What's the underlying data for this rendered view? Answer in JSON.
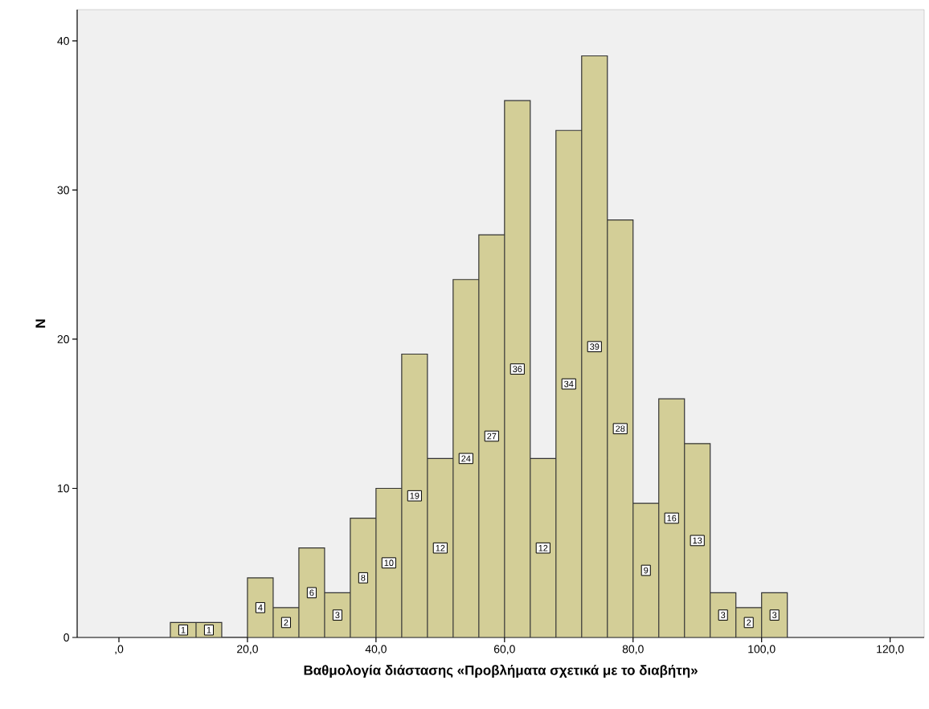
{
  "chart_data": {
    "type": "histogram",
    "xlabel": "Βαθμολογία διάστασης «Προβλήματα σχετικά με το διαβήτη»",
    "ylabel": "N",
    "bins": [
      8,
      12,
      16,
      20,
      24,
      28,
      32,
      36,
      40,
      44,
      48,
      52,
      56,
      60,
      64,
      68,
      72,
      76,
      80,
      84,
      88,
      92,
      96,
      100,
      104
    ],
    "values": [
      1,
      1,
      0,
      4,
      2,
      6,
      3,
      8,
      10,
      19,
      12,
      24,
      27,
      36,
      12,
      34,
      39,
      28,
      9,
      16,
      13,
      3,
      2,
      3
    ],
    "value_labels": [
      "1",
      "1",
      null,
      "4",
      "2",
      "6",
      "3",
      "8",
      "10",
      "19",
      "12",
      "24",
      "27",
      "36",
      "12",
      "34",
      "39",
      "28",
      "9",
      "16",
      "13",
      "3",
      "2",
      "3"
    ],
    "color": "#d3ce97",
    "xlim": [
      -6.5,
      125.3
    ],
    "ylim": [
      0,
      42.1
    ],
    "xticks": [
      {
        "value": 0,
        "label": ",0"
      },
      {
        "value": 20,
        "label": "20,0"
      },
      {
        "value": 40,
        "label": "40,0"
      },
      {
        "value": 60,
        "label": "60,0"
      },
      {
        "value": 80,
        "label": "80,0"
      },
      {
        "value": 100,
        "label": "100,0"
      },
      {
        "value": 120,
        "label": "120,0"
      }
    ],
    "yticks": [
      0,
      10,
      20,
      30,
      40
    ]
  }
}
